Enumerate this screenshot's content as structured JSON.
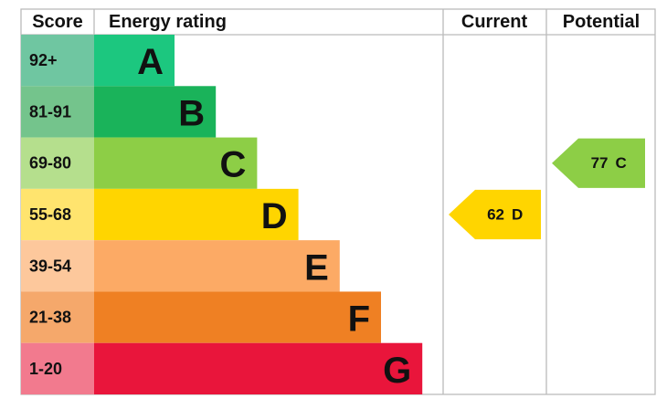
{
  "chart_data": {
    "type": "epc",
    "headers": {
      "score": "Score",
      "rating": "Energy rating",
      "current": "Current",
      "potential": "Potential"
    },
    "categories": [
      "A",
      "B",
      "C",
      "D",
      "E",
      "F",
      "G"
    ],
    "score_ranges": [
      "92+",
      "81-91",
      "69-80",
      "55-68",
      "39-54",
      "21-38",
      "1-20"
    ],
    "colors": [
      "#1cc77f",
      "#1ab35a",
      "#8dce46",
      "#ffd500",
      "#fcaa65",
      "#ef8023",
      "#e9153b"
    ],
    "score_colors": [
      "#6fc6a1",
      "#74c48c",
      "#b5df8d",
      "#ffe46e",
      "#fdc89c",
      "#f5a86b",
      "#f27a8e"
    ],
    "current": {
      "value": 62,
      "letter": "D"
    },
    "potential": {
      "value": 77,
      "letter": "C"
    }
  }
}
